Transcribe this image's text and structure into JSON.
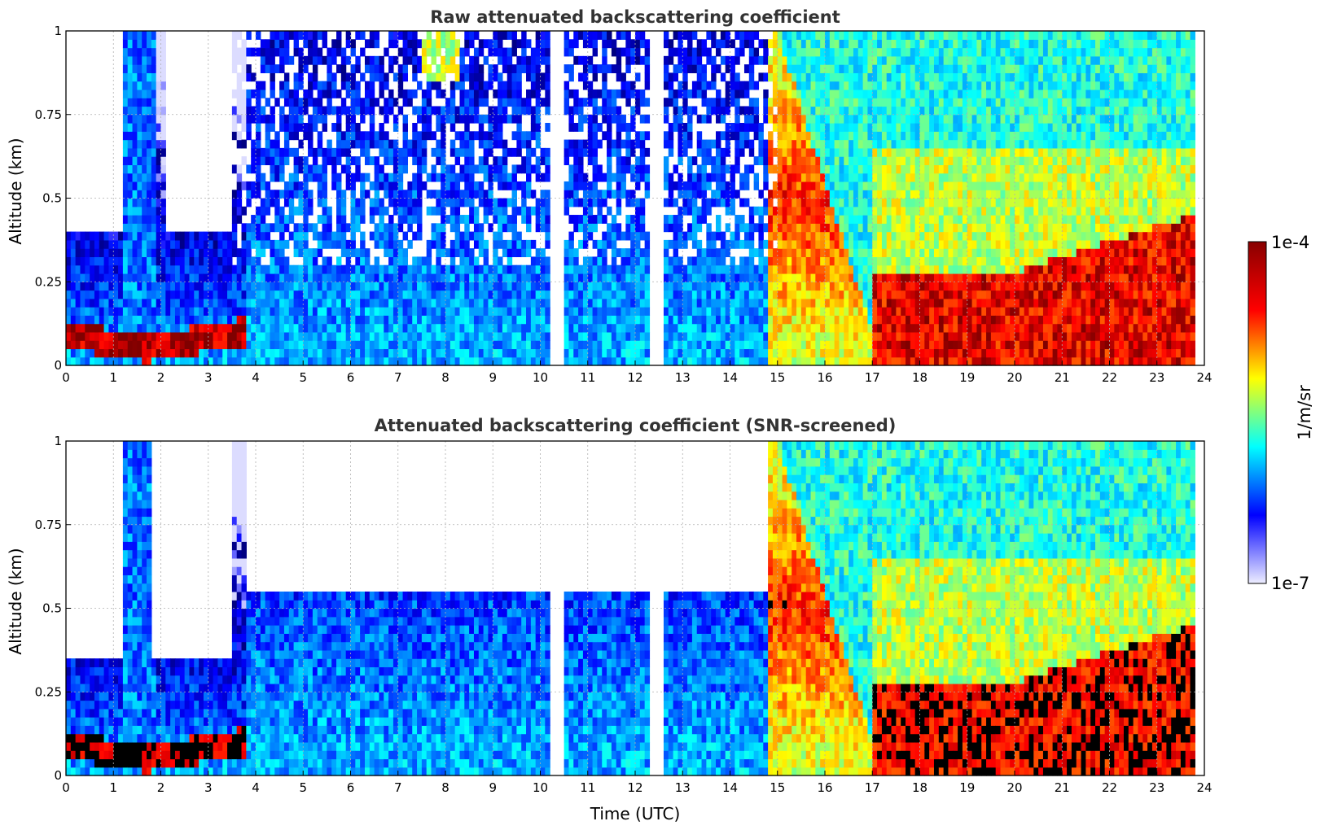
{
  "chart_data": [
    {
      "type": "heatmap",
      "title": "Raw attenuated backscattering coefficient",
      "xlabel": "",
      "ylabel": "Altitude (km)",
      "xlim": [
        0,
        24
      ],
      "ylim": [
        0,
        1
      ],
      "x_ticks": [
        "0",
        "1",
        "2",
        "3",
        "4",
        "5",
        "6",
        "7",
        "8",
        "9",
        "10",
        "11",
        "12",
        "13",
        "14",
        "15",
        "16",
        "17",
        "18",
        "19",
        "20",
        "21",
        "22",
        "23",
        "24"
      ],
      "y_ticks": [
        "0",
        "0.25",
        "0.5",
        "0.75",
        "1"
      ],
      "grid": true,
      "screened": false
    },
    {
      "type": "heatmap",
      "title": "Attenuated backscattering coefficient (SNR-screened)",
      "xlabel": "Time (UTC)",
      "ylabel": "Altitude (km)",
      "xlim": [
        0,
        24
      ],
      "ylim": [
        0,
        1
      ],
      "x_ticks": [
        "0",
        "1",
        "2",
        "3",
        "4",
        "5",
        "6",
        "7",
        "8",
        "9",
        "10",
        "11",
        "12",
        "13",
        "14",
        "15",
        "16",
        "17",
        "18",
        "19",
        "20",
        "21",
        "22",
        "23",
        "24"
      ],
      "y_ticks": [
        "0",
        "0.25",
        "0.5",
        "0.75",
        "1"
      ],
      "grid": true,
      "screened": true
    }
  ],
  "colorbar": {
    "label": "1/m/sr",
    "max_label": "1e-4",
    "min_label": "1e-7",
    "scale": "log",
    "colormap": "jet",
    "colors": [
      "#eeeeff",
      "#0000ff",
      "#00ffff",
      "#ffff00",
      "#ff0000",
      "#880000"
    ]
  },
  "data_gaps_hours": [
    [
      10.2,
      10.55
    ],
    [
      12.3,
      12.6
    ]
  ]
}
